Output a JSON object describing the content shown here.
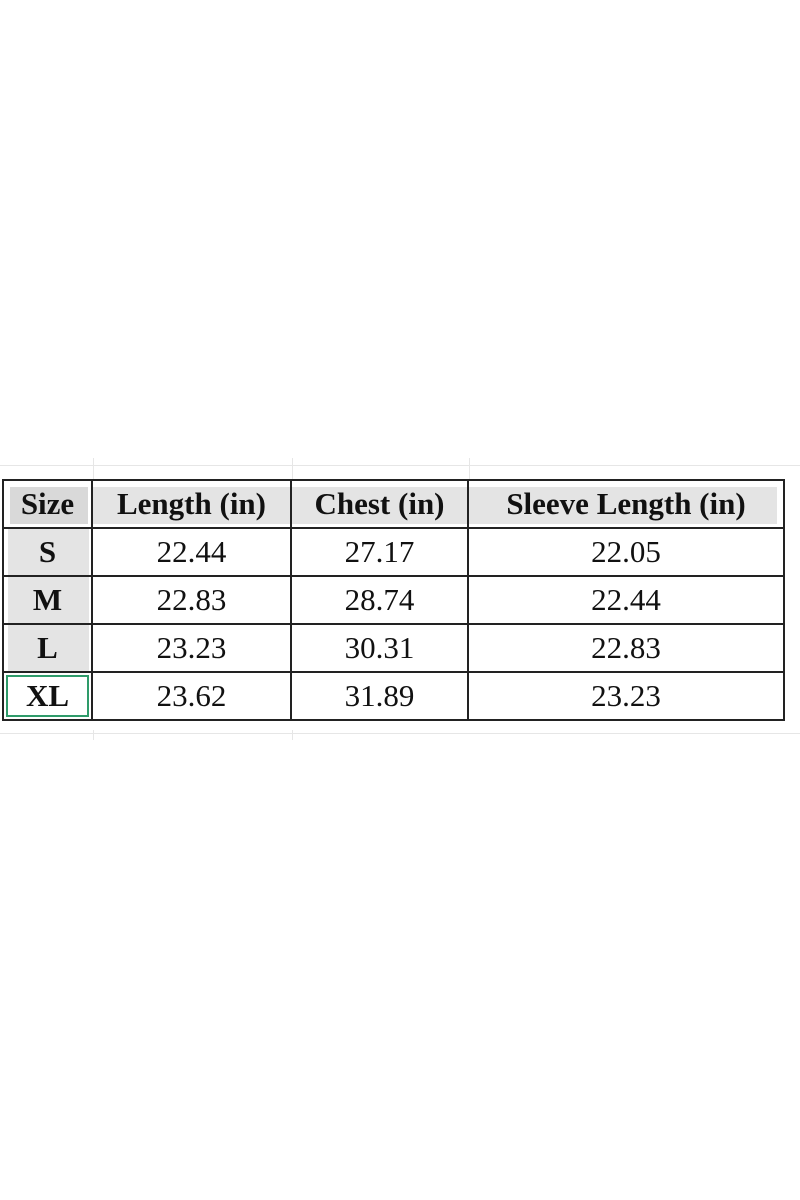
{
  "table": {
    "headers": [
      "Size",
      "Length (in)",
      "Chest (in)",
      "Sleeve Length (in)"
    ],
    "rows": [
      [
        "S",
        "22.44",
        "27.17",
        "22.05"
      ],
      [
        "M",
        "22.83",
        "28.74",
        "22.44"
      ],
      [
        "L",
        "23.23",
        "30.31",
        "22.83"
      ],
      [
        "XL",
        "23.62",
        "31.89",
        "23.23"
      ]
    ],
    "selected_cell": "XL",
    "selection_color": "#2e9b6a",
    "header_fill": "#e4e4e4"
  }
}
